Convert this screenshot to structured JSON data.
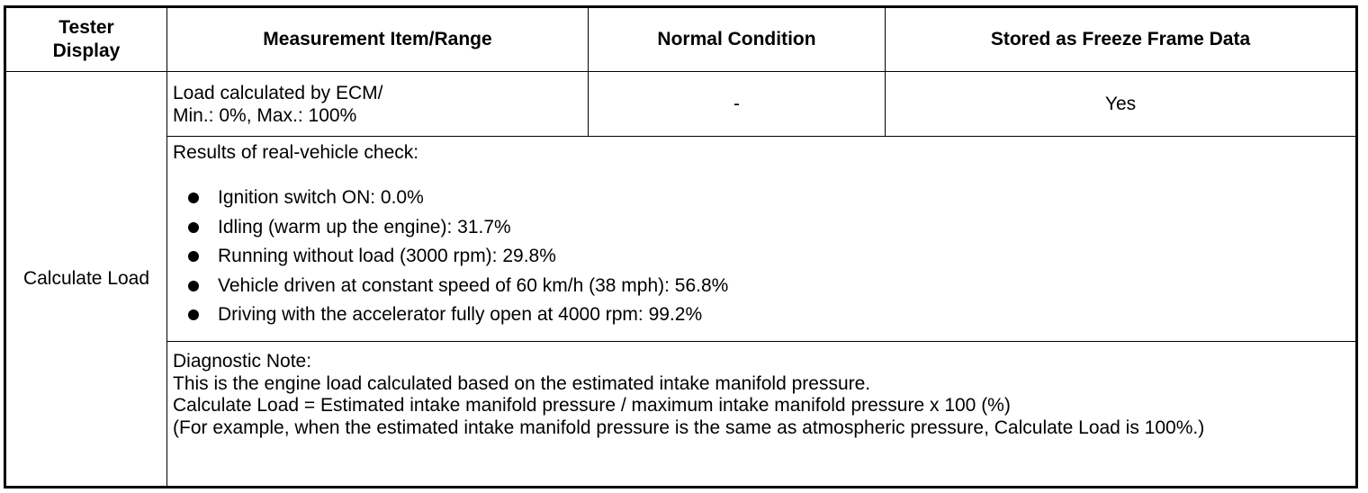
{
  "headers": {
    "tester_display": "Tester Display",
    "measurement": "Measurement Item/Range",
    "normal_condition": "Normal Condition",
    "freeze_frame": "Stored as Freeze Frame Data"
  },
  "row": {
    "tester_display": "Calculate Load",
    "measurement_lines": [
      "Load calculated by ECM/",
      "Min.: 0%, Max.: 100%"
    ],
    "normal_condition": "-",
    "freeze_frame": "Yes"
  },
  "results": {
    "intro": "Results of real-vehicle check:",
    "items": [
      "Ignition switch ON: 0.0%",
      "Idling (warm up the engine): 31.7%",
      "Running without load (3000 rpm): 29.8%",
      "Vehicle driven at constant speed of 60 km/h (38 mph): 56.8%",
      "Driving with the accelerator fully open at 4000 rpm: 99.2%"
    ]
  },
  "note": {
    "title": "Diagnostic Note:",
    "line1": "This is the engine load calculated based on the estimated intake manifold pressure.",
    "line2": "Calculate Load = Estimated intake manifold pressure / maximum intake manifold pressure x 100 (%)",
    "line3": "(For example, when the estimated intake manifold pressure is the same as atmospheric pressure, Calculate Load is 100%.)"
  }
}
